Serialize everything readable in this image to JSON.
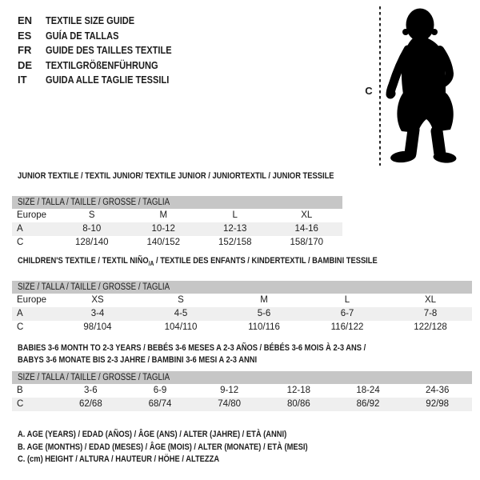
{
  "colors": {
    "header_bar": "#c6c6c6",
    "row_stripe": "#efefef",
    "text": "#1c1c1c",
    "silhouette": "#000000"
  },
  "languages": [
    {
      "code": "EN",
      "title": "TEXTILE SIZE GUIDE"
    },
    {
      "code": "ES",
      "title": "GUÍA DE TALLAS"
    },
    {
      "code": "FR",
      "title": "GUIDE DES TAILLES TEXTILE"
    },
    {
      "code": "DE",
      "title": "TEXTILGRÖßENFÜHRUNG"
    },
    {
      "code": "IT",
      "title": "GUIDA ALLE TAGLIE TESSILI"
    }
  ],
  "figure": {
    "height_label": "C"
  },
  "sections": [
    {
      "id": "junior",
      "title_lines": [
        [
          {
            "text": "JUNIOR TEXTILE / TEXTIL JUNIOR/ TEXTILE JUNIOR / JUNIORTEXTIL / JUNIOR TESSILE"
          }
        ]
      ],
      "size_header": "SIZE / TALLA / TAILLE / GRÖSSE / TAGLIA",
      "rows": [
        {
          "label": "Europe",
          "values": [
            "S",
            "M",
            "L",
            "XL"
          ],
          "striped": false
        },
        {
          "label": "A",
          "values": [
            "8-10",
            "10-12",
            "12-13",
            "14-16"
          ],
          "striped": true
        },
        {
          "label": "C",
          "values": [
            "128/140",
            "140/152",
            "152/158",
            "158/170"
          ],
          "striped": false
        }
      ]
    },
    {
      "id": "children",
      "title_lines": [
        [
          {
            "text": "CHILDREN'S TEXTILE / TEXTIL NIÑO"
          },
          {
            "text": "/A",
            "sub": true
          },
          {
            "text": " / TEXTILE DES ENFANTS / KINDERTEXTIL / BAMBINI TESSILE"
          }
        ]
      ],
      "size_header": "SIZE / TALLA / TAILLE / GRÖSSE / TAGLIA",
      "rows": [
        {
          "label": "Europe",
          "values": [
            "XS",
            "S",
            "M",
            "L",
            "XL"
          ],
          "striped": false
        },
        {
          "label": "A",
          "values": [
            "3-4",
            "4-5",
            "5-6",
            "6-7",
            "7-8"
          ],
          "striped": true
        },
        {
          "label": "C",
          "values": [
            "98/104",
            "104/110",
            "110/116",
            "116/122",
            "122/128"
          ],
          "striped": false
        }
      ]
    },
    {
      "id": "babies",
      "title_lines": [
        [
          {
            "text": "BABIES 3-6 MONTH TO 2-3 YEARS / BEBÉS 3-6 MESES A 2-3 AÑOS / BÉBÉS 3-6 MOIS À 2-3 ANS /"
          }
        ],
        [
          {
            "text": "BABYS 3-6 MONATE BIS 2-3 JAHRE / BAMBINI 3-6 MESI A 2-3 ANNI"
          }
        ]
      ],
      "size_header": "SIZE / TALLA / TAILLE / GRÖSSE / TAGLIA",
      "rows": [
        {
          "label": "B",
          "values": [
            "3-6",
            "6-9",
            "9-12",
            "12-18",
            "18-24",
            "24-36"
          ],
          "striped": false
        },
        {
          "label": "C",
          "values": [
            "62/68",
            "68/74",
            "74/80",
            "80/86",
            "86/92",
            "92/98"
          ],
          "striped": true
        }
      ]
    }
  ],
  "footnotes": [
    "A. AGE (YEARS) / EDAD (AÑOS) / ÂGE (ANS) / ALTER (JAHRE) / ETÀ (ANNI)",
    "B. AGE (MONTHS) / EDAD (MESES) / ÂGE (MOIS) / ALTER (MONATE) / ETÀ (MESI)",
    "C. (cm) HEIGHT / ALTURA / HAUTEUR / HÖHE / ALTEZZA"
  ]
}
